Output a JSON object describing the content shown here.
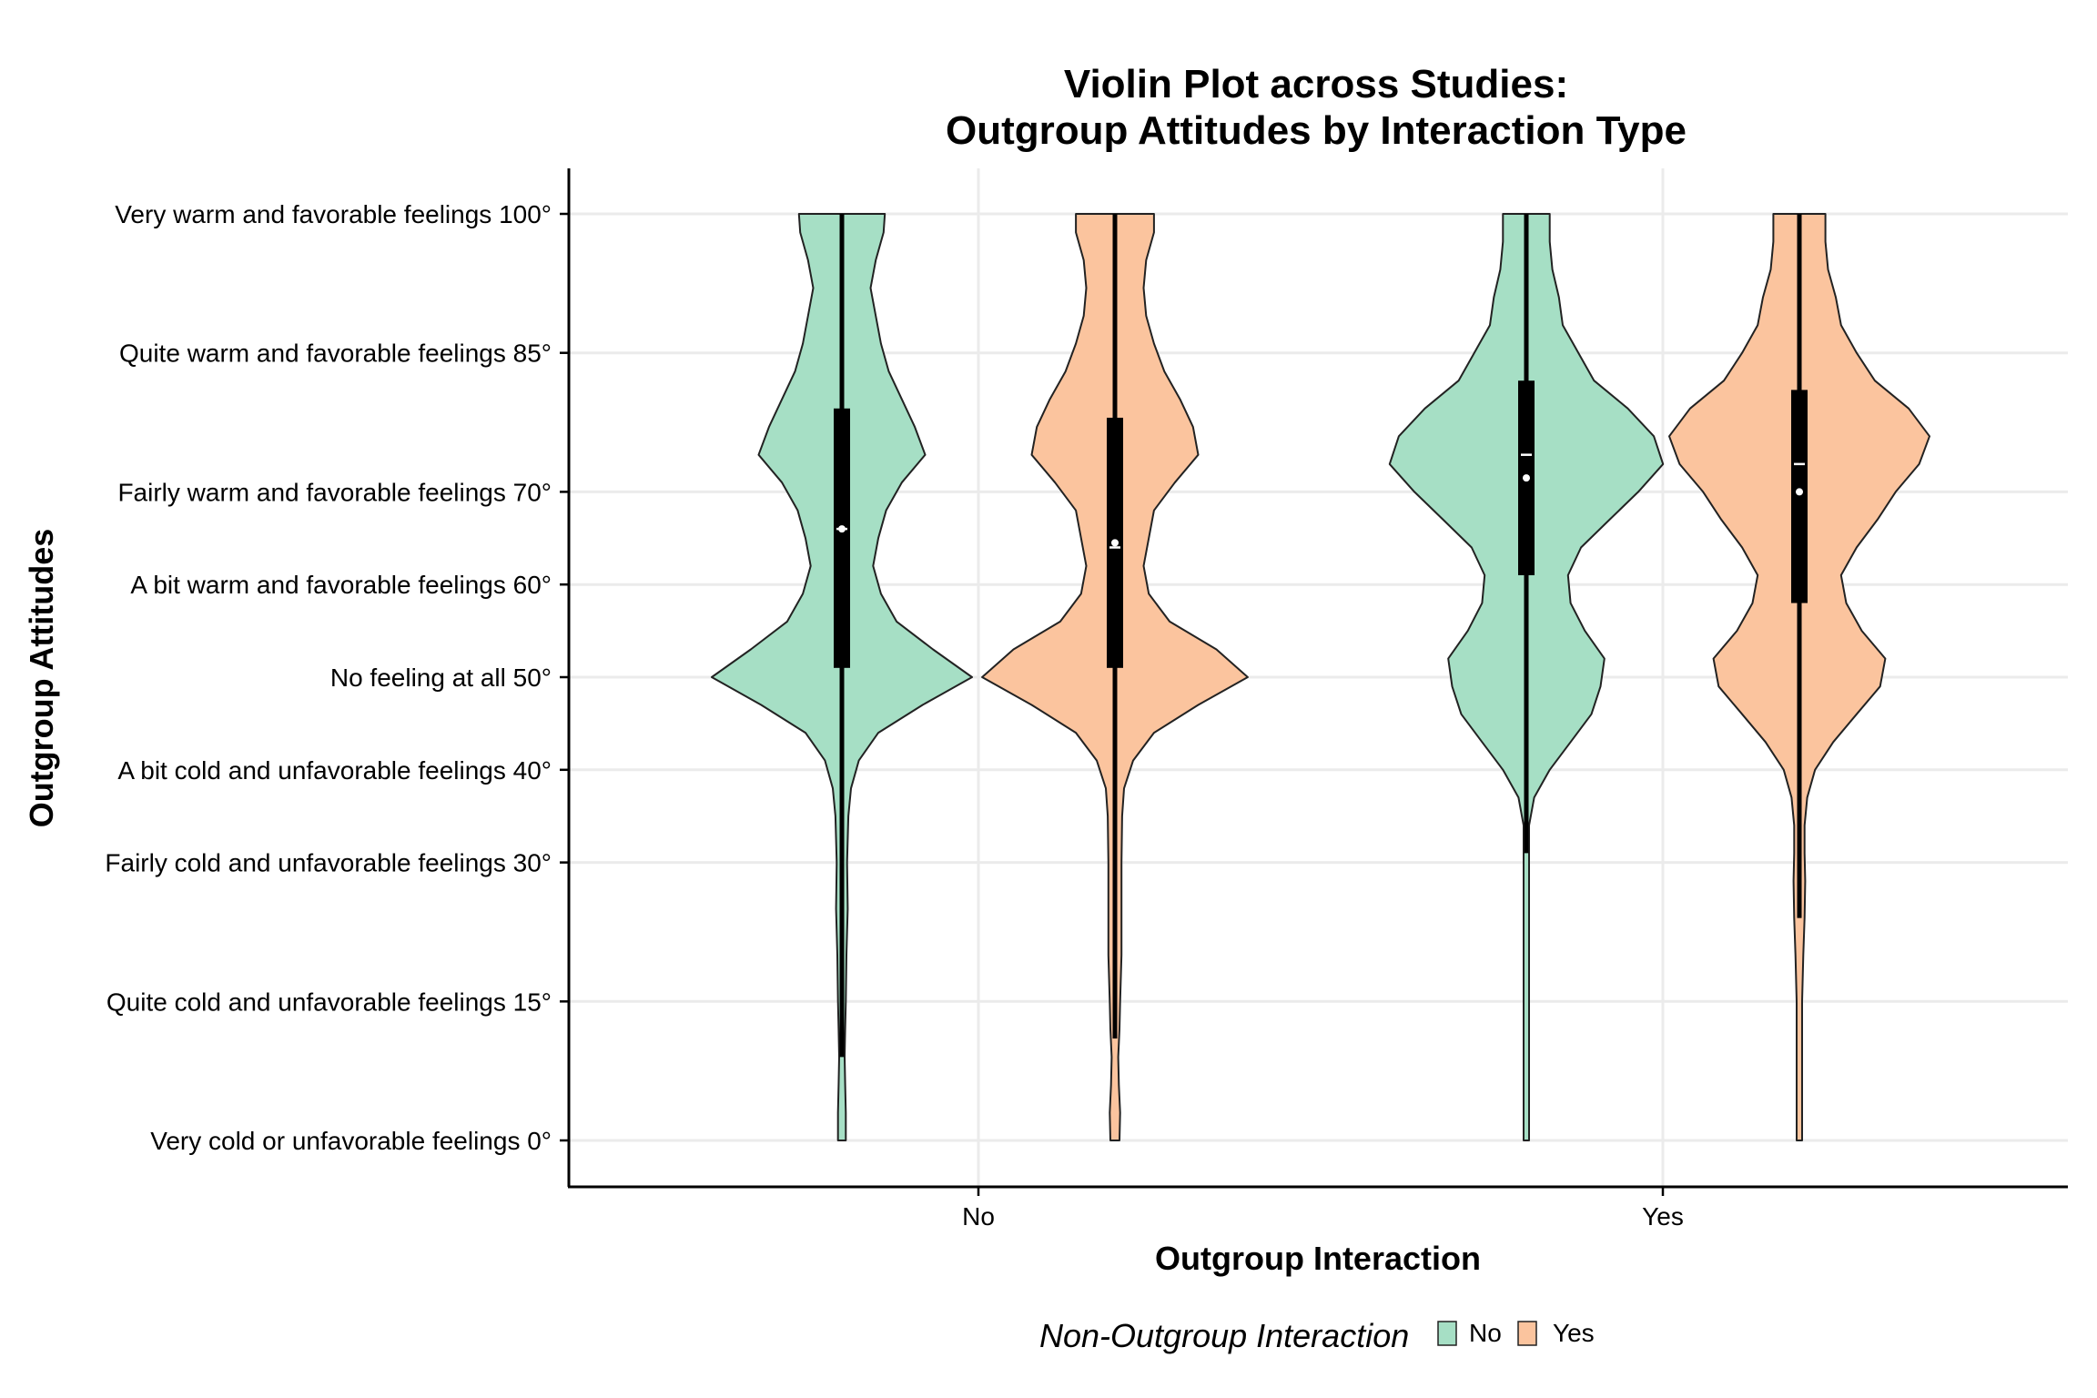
{
  "chart_data": {
    "type": "violin",
    "title": [
      "Violin Plot across Studies:",
      "Outgroup Attitudes by Interaction Type"
    ],
    "xlabel": "Outgroup Interaction",
    "ylabel": "Outgroup Attitudes",
    "categories": [
      "No",
      "Yes"
    ],
    "ylim": [
      -5,
      105
    ],
    "y_ticks": [
      {
        "value": 100,
        "label": "Very warm and favorable feelings 100°"
      },
      {
        "value": 85,
        "label": "Quite warm and favorable feelings 85°"
      },
      {
        "value": 70,
        "label": "Fairly warm and favorable feelings 70°"
      },
      {
        "value": 60,
        "label": "A bit warm and favorable feelings 60°"
      },
      {
        "value": 50,
        "label": "No feeling at all 50°"
      },
      {
        "value": 40,
        "label": "A bit cold and unfavorable feelings 40°"
      },
      {
        "value": 30,
        "label": "Fairly cold and unfavorable feelings 30°"
      },
      {
        "value": 15,
        "label": "Quite cold and unfavorable feelings 15°"
      },
      {
        "value": 0,
        "label": "Very cold or unfavorable feelings 0°"
      }
    ],
    "grid": true,
    "legend": {
      "title": "Non-Outgroup Interaction",
      "position": "bottom",
      "entries": [
        {
          "label": "No",
          "color": "#a6dfc5"
        },
        {
          "label": "Yes",
          "color": "#fbc49e"
        }
      ]
    },
    "series": [
      {
        "name": "No",
        "color": "#a6dfc5",
        "groups": [
          {
            "category": "No",
            "box": {
              "q1": 51,
              "median": 66,
              "q3": 79,
              "whisker_low": 9,
              "whisker_high": 100
            },
            "mean": 66,
            "density": [
              [
                0,
                0.03
              ],
              [
                3,
                0.03
              ],
              [
                6,
                0.025
              ],
              [
                9,
                0.02
              ],
              [
                12,
                0.025
              ],
              [
                15,
                0.03
              ],
              [
                20,
                0.035
              ],
              [
                25,
                0.045
              ],
              [
                30,
                0.04
              ],
              [
                35,
                0.05
              ],
              [
                38,
                0.07
              ],
              [
                41,
                0.13
              ],
              [
                44,
                0.28
              ],
              [
                47,
                0.62
              ],
              [
                50,
                1.0
              ],
              [
                53,
                0.7
              ],
              [
                56,
                0.42
              ],
              [
                59,
                0.3
              ],
              [
                62,
                0.24
              ],
              [
                65,
                0.28
              ],
              [
                68,
                0.34
              ],
              [
                71,
                0.46
              ],
              [
                74,
                0.64
              ],
              [
                77,
                0.56
              ],
              [
                80,
                0.46
              ],
              [
                83,
                0.36
              ],
              [
                86,
                0.3
              ],
              [
                89,
                0.26
              ],
              [
                92,
                0.22
              ],
              [
                95,
                0.26
              ],
              [
                98,
                0.32
              ],
              [
                100,
                0.33
              ]
            ]
          },
          {
            "category": "Yes",
            "box": {
              "q1": 61,
              "median": 74,
              "q3": 82,
              "whisker_low": 31,
              "whisker_high": 100
            },
            "mean": 71.5,
            "density": [
              [
                0,
                0.012
              ],
              [
                5,
                0.012
              ],
              [
                10,
                0.012
              ],
              [
                15,
                0.012
              ],
              [
                20,
                0.014
              ],
              [
                25,
                0.016
              ],
              [
                28,
                0.018
              ],
              [
                31,
                0.02
              ],
              [
                34,
                0.02
              ],
              [
                37,
                0.06
              ],
              [
                40,
                0.18
              ],
              [
                43,
                0.34
              ],
              [
                46,
                0.5
              ],
              [
                49,
                0.57
              ],
              [
                52,
                0.6
              ],
              [
                55,
                0.45
              ],
              [
                58,
                0.34
              ],
              [
                61,
                0.32
              ],
              [
                64,
                0.42
              ],
              [
                67,
                0.64
              ],
              [
                70,
                0.86
              ],
              [
                73,
                1.05
              ],
              [
                76,
                0.98
              ],
              [
                79,
                0.78
              ],
              [
                82,
                0.52
              ],
              [
                85,
                0.4
              ],
              [
                88,
                0.28
              ],
              [
                91,
                0.25
              ],
              [
                94,
                0.2
              ],
              [
                97,
                0.18
              ],
              [
                100,
                0.18
              ]
            ]
          }
        ]
      },
      {
        "name": "Yes",
        "color": "#fbc49e",
        "groups": [
          {
            "category": "No",
            "box": {
              "q1": 51,
              "median": 64,
              "q3": 78,
              "whisker_low": 11,
              "whisker_high": 100
            },
            "mean": 64.5,
            "density": [
              [
                0,
                0.035
              ],
              [
                3,
                0.04
              ],
              [
                6,
                0.03
              ],
              [
                9,
                0.025
              ],
              [
                12,
                0.035
              ],
              [
                15,
                0.04
              ],
              [
                20,
                0.05
              ],
              [
                25,
                0.05
              ],
              [
                30,
                0.05
              ],
              [
                35,
                0.055
              ],
              [
                38,
                0.07
              ],
              [
                41,
                0.14
              ],
              [
                44,
                0.3
              ],
              [
                47,
                0.64
              ],
              [
                50,
                1.02
              ],
              [
                53,
                0.78
              ],
              [
                56,
                0.42
              ],
              [
                59,
                0.26
              ],
              [
                62,
                0.22
              ],
              [
                65,
                0.26
              ],
              [
                68,
                0.3
              ],
              [
                71,
                0.46
              ],
              [
                74,
                0.64
              ],
              [
                77,
                0.6
              ],
              [
                80,
                0.5
              ],
              [
                83,
                0.38
              ],
              [
                86,
                0.3
              ],
              [
                89,
                0.24
              ],
              [
                92,
                0.22
              ],
              [
                95,
                0.24
              ],
              [
                98,
                0.3
              ],
              [
                100,
                0.3
              ]
            ]
          },
          {
            "category": "Yes",
            "box": {
              "q1": 58,
              "median": 73,
              "q3": 81,
              "whisker_low": 24,
              "whisker_high": 100
            },
            "mean": 70,
            "density": [
              [
                0,
                0.012
              ],
              [
                5,
                0.012
              ],
              [
                10,
                0.015
              ],
              [
                15,
                0.02
              ],
              [
                20,
                0.03
              ],
              [
                24,
                0.04
              ],
              [
                28,
                0.045
              ],
              [
                31,
                0.04
              ],
              [
                34,
                0.04
              ],
              [
                37,
                0.06
              ],
              [
                40,
                0.12
              ],
              [
                43,
                0.26
              ],
              [
                46,
                0.44
              ],
              [
                49,
                0.62
              ],
              [
                52,
                0.66
              ],
              [
                55,
                0.48
              ],
              [
                58,
                0.36
              ],
              [
                61,
                0.32
              ],
              [
                64,
                0.44
              ],
              [
                67,
                0.6
              ],
              [
                70,
                0.74
              ],
              [
                73,
                0.92
              ],
              [
                76,
                1.0
              ],
              [
                79,
                0.84
              ],
              [
                82,
                0.58
              ],
              [
                85,
                0.44
              ],
              [
                88,
                0.32
              ],
              [
                91,
                0.28
              ],
              [
                94,
                0.22
              ],
              [
                97,
                0.2
              ],
              [
                100,
                0.2
              ]
            ]
          }
        ]
      }
    ]
  }
}
